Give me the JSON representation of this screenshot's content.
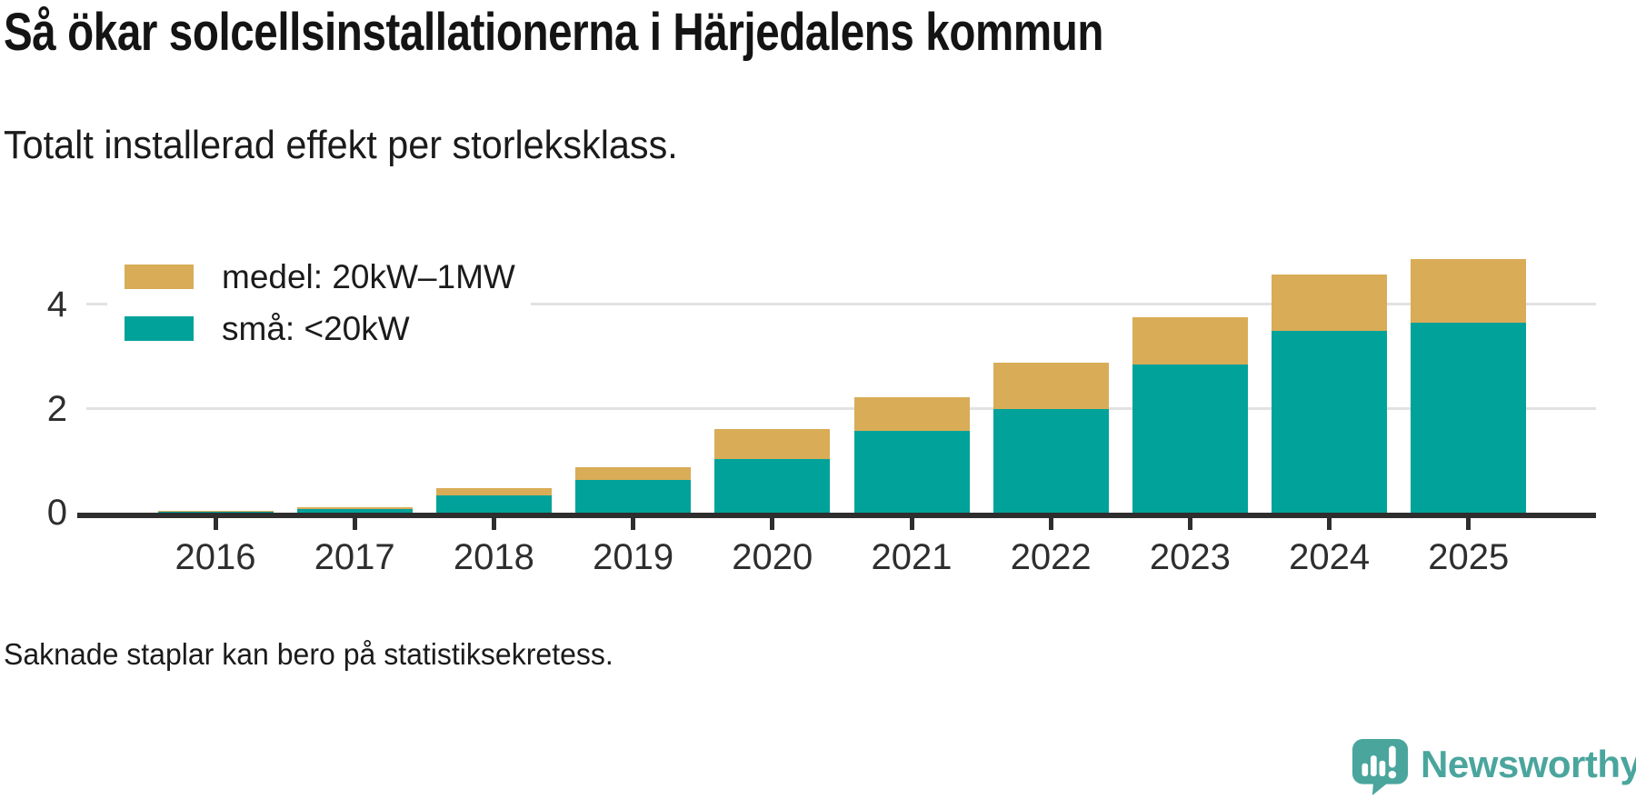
{
  "header": {
    "title": "Så ökar solcellsinstallationerna i Härjedalens kommun",
    "subtitle": "Totalt installerad effekt per storleksklass."
  },
  "footer": {
    "footnote": "Saknade staplar kan bero på statistiksekretess.",
    "brand_name": "Newsworthy"
  },
  "colors": {
    "medel": "#D9AC57",
    "sma": "#00A29A",
    "axis_text": "#2e2e2e",
    "baseline": "#2E2E2E",
    "gridline": "#E2E2E2",
    "brand_teal": "#4AA59D"
  },
  "chart_data": {
    "type": "bar",
    "stacked": true,
    "title": "Så ökar solcellsinstallationerna i Härjedalens kommun",
    "subtitle": "Totalt installerad effekt per storleksklass.",
    "xlabel": "",
    "ylabel": "",
    "categories": [
      "2016",
      "2017",
      "2018",
      "2019",
      "2020",
      "2021",
      "2022",
      "2023",
      "2024",
      "2025"
    ],
    "series": [
      {
        "name": "medel: 20kW–1MW",
        "color": "#D9AC57",
        "stack_position": "top",
        "values": [
          0.03,
          0.04,
          0.14,
          0.24,
          0.57,
          0.65,
          0.89,
          0.91,
          1.08,
          1.22
        ]
      },
      {
        "name": "små: <20kW",
        "color": "#00A29A",
        "stack_position": "bottom",
        "values": [
          0.01,
          0.07,
          0.34,
          0.63,
          1.04,
          1.57,
          2.0,
          2.85,
          3.5,
          3.66
        ]
      }
    ],
    "totals": [
      0.04,
      0.11,
      0.48,
      0.87,
      1.61,
      2.22,
      2.89,
      3.76,
      4.58,
      4.88
    ],
    "yticks": [
      0,
      2,
      4
    ],
    "ylim": [
      0,
      5.2
    ],
    "grid": "horizontal",
    "legend_position": "top-left"
  }
}
